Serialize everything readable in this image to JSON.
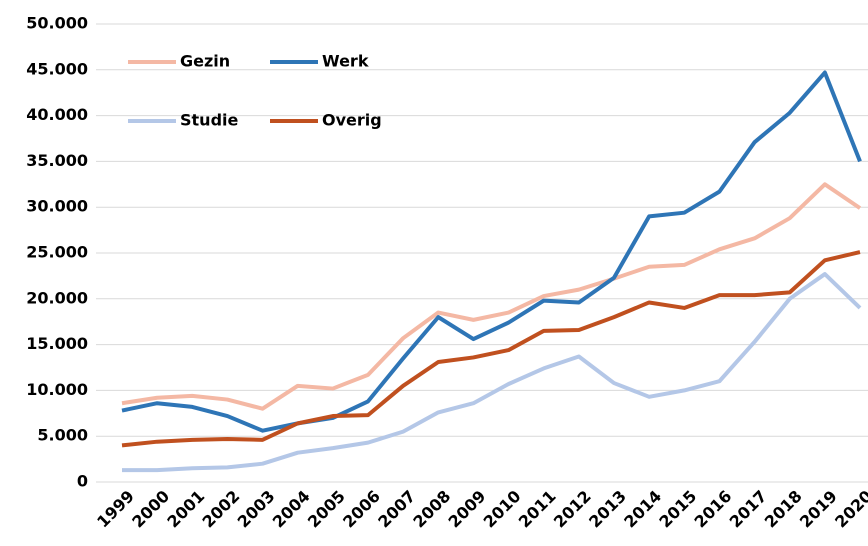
{
  "chart_data": {
    "type": "line",
    "categories": [
      "1999",
      "2000",
      "2001",
      "2002",
      "2003",
      "2004",
      "2005",
      "2006",
      "2007",
      "2008",
      "2009",
      "2010",
      "2011",
      "2012",
      "2013",
      "2014",
      "2015",
      "2016",
      "2017",
      "2018",
      "2019",
      "2020"
    ],
    "series": [
      {
        "name": "Gezin",
        "color": "#f4b8a4",
        "values": [
          8600,
          9200,
          9400,
          9000,
          8000,
          10500,
          10200,
          11700,
          15700,
          18500,
          17700,
          18500,
          20300,
          21000,
          22200,
          23500,
          23700,
          25400,
          26600,
          28800,
          32500,
          29900
        ]
      },
      {
        "name": "Werk",
        "color": "#2e75b6",
        "values": [
          7800,
          8600,
          8200,
          7200,
          5600,
          6400,
          7000,
          8800,
          13500,
          18000,
          15600,
          17400,
          19800,
          19600,
          22300,
          29000,
          29400,
          31700,
          37100,
          40300,
          44700,
          35000
        ]
      },
      {
        "name": "Studie",
        "color": "#b4c7e7",
        "values": [
          1300,
          1300,
          1500,
          1600,
          2000,
          3200,
          3700,
          4300,
          5500,
          7600,
          8600,
          10700,
          12400,
          13700,
          10800,
          9300,
          10000,
          11000,
          15300,
          20000,
          22700,
          19000
        ]
      },
      {
        "name": "Overig",
        "color": "#c0501f",
        "values": [
          4000,
          4400,
          4600,
          4700,
          4600,
          6400,
          7200,
          7300,
          10500,
          13100,
          13600,
          14400,
          16500,
          16600,
          18000,
          19600,
          19000,
          20400,
          20400,
          20700,
          24200,
          25100
        ]
      }
    ],
    "ylim": [
      0,
      50000
    ],
    "yticks": [
      0,
      {
        "value": 5000,
        "label": "5.000"
      },
      {
        "value": 10000,
        "label": "10.000"
      },
      {
        "value": 15000,
        "label": "15.000"
      },
      {
        "value": 20000,
        "label": "20.000"
      },
      {
        "value": 25000,
        "label": "25.000"
      },
      {
        "value": 30000,
        "label": "30.000"
      },
      {
        "value": 35000,
        "label": "35.000"
      },
      {
        "value": 40000,
        "label": "40.000"
      },
      {
        "value": 45000,
        "label": "45.000"
      },
      {
        "value": 50000,
        "label": "50.000"
      }
    ],
    "grid": true
  }
}
